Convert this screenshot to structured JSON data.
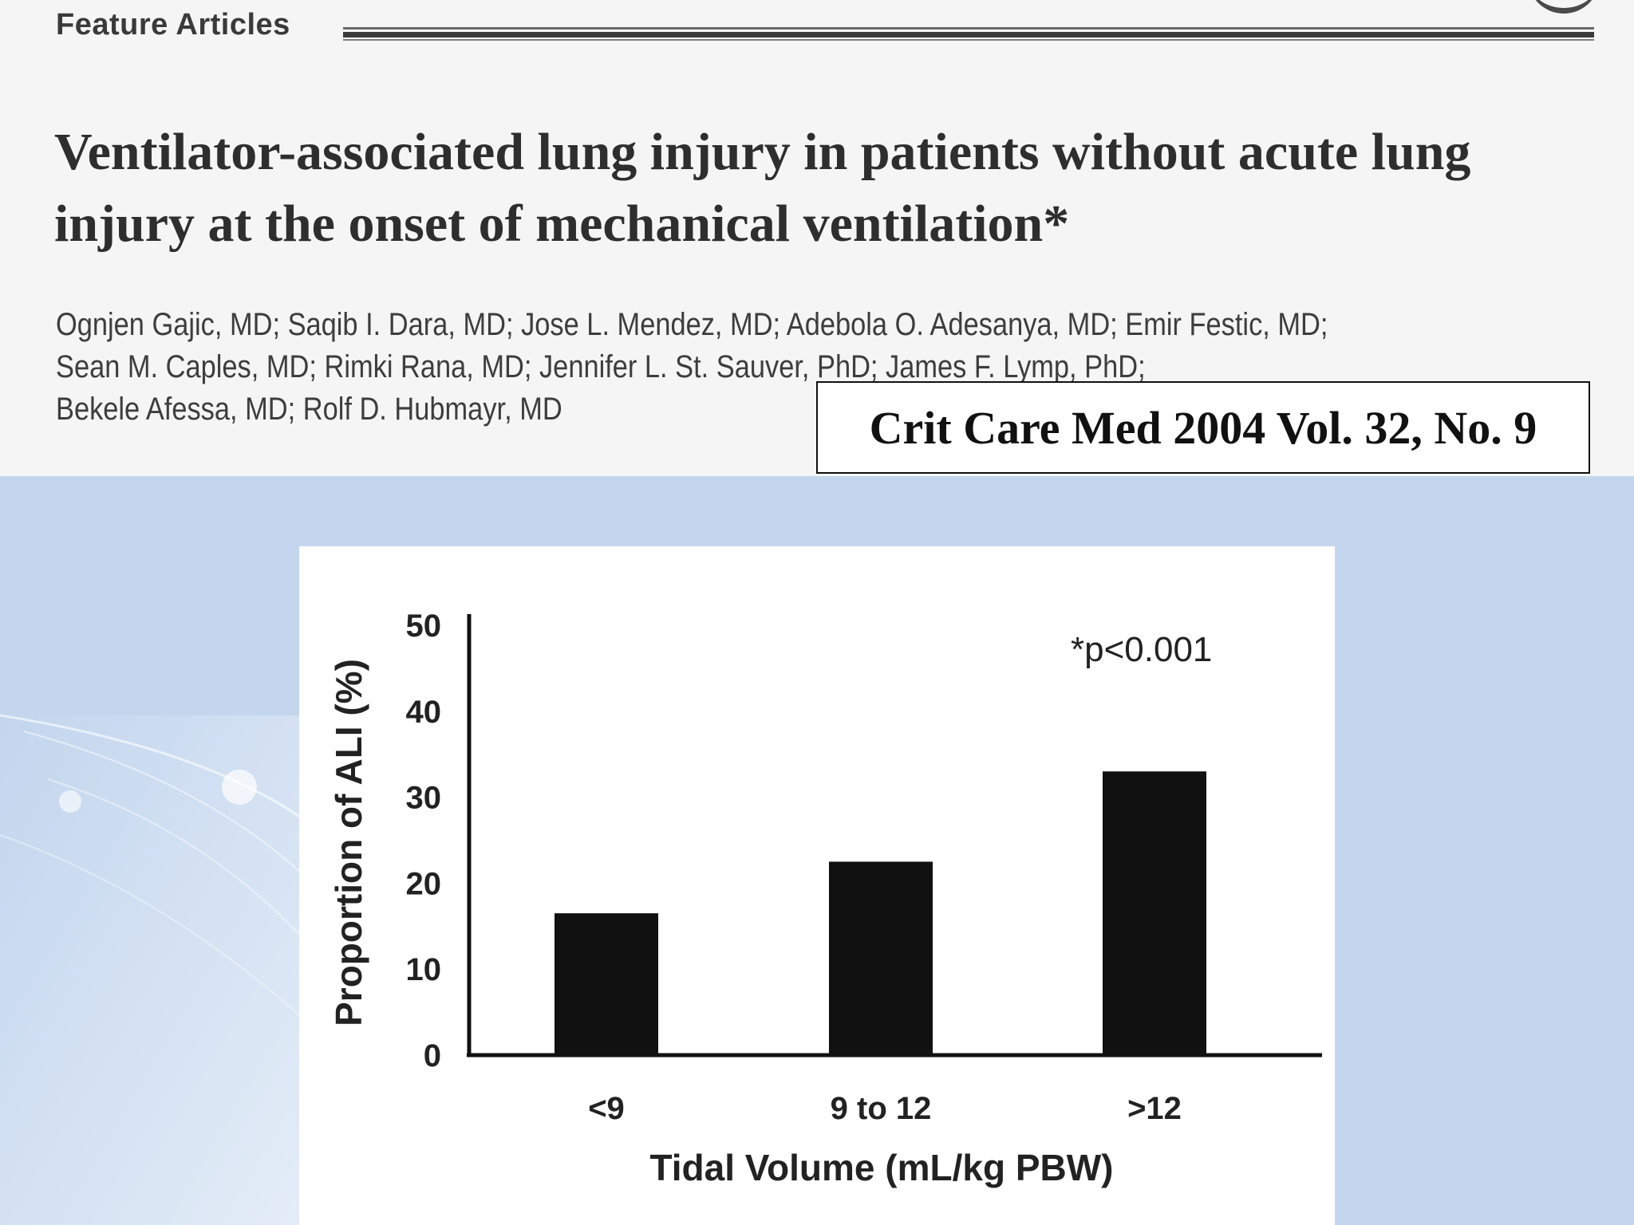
{
  "header": {
    "section_label": "Feature Articles",
    "title_line1": "Ventilator-associated lung injury in patients without acute lung",
    "title_line2": "injury at the onset of mechanical ventilation*",
    "authors_line1": "Ognjen Gajic, MD; Saqib I. Dara, MD; Jose L. Mendez, MD; Adebola O. Adesanya, MD; Emir Festic, MD;",
    "authors_line2": "Sean M. Caples, MD; Rimki Rana, MD; Jennifer L. St. Sauver, PhD; James F. Lymp, PhD;",
    "authors_line3": "Bekele Afessa, MD; Rolf D. Hubmayr, MD",
    "citation": "Crit Care Med 2004 Vol. 32, No. 9"
  },
  "colors": {
    "slide_background": "#c3d6ee",
    "header_background": "#f5f5f5",
    "bar_fill": "#111111"
  },
  "chart_data": {
    "type": "bar",
    "categories": [
      "<9",
      "9 to 12",
      ">12"
    ],
    "values": [
      16.5,
      22.5,
      33
    ],
    "xlabel": "Tidal Volume (mL/kg PBW)",
    "ylabel": "Proportion of ALI (%)",
    "ylim": [
      0,
      50
    ],
    "yticks": [
      0,
      10,
      20,
      30,
      40,
      50
    ],
    "annotation": "*p<0.001",
    "grid": false,
    "legend": "none"
  }
}
